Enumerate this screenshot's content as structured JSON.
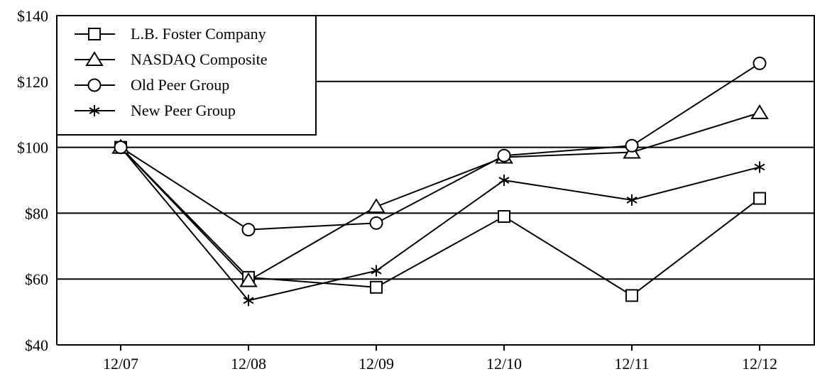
{
  "chart_data": {
    "type": "line",
    "categories": [
      "12/07",
      "12/08",
      "12/09",
      "12/10",
      "12/11",
      "12/12"
    ],
    "ylim": [
      40,
      140
    ],
    "yticks": [
      40,
      60,
      80,
      100,
      120,
      140
    ],
    "ytick_labels": [
      "$40",
      "$60",
      "$80",
      "$100",
      "$120",
      "$140"
    ],
    "grid": "horizontal",
    "legend_position": "top-left",
    "series": [
      {
        "name": "L.B. Foster Company",
        "marker": "square",
        "values": [
          100,
          60.5,
          57.5,
          79,
          55,
          84.5
        ]
      },
      {
        "name": "NASDAQ Composite",
        "marker": "triangle",
        "values": [
          100,
          59.5,
          82,
          97,
          98.5,
          110.5
        ]
      },
      {
        "name": "Old Peer Group",
        "marker": "circle",
        "values": [
          100,
          75,
          77,
          97.5,
          100.5,
          125.5
        ]
      },
      {
        "name": "New Peer Group",
        "marker": "asterisk",
        "values": [
          100,
          53.5,
          62.5,
          90,
          84,
          94
        ]
      }
    ]
  }
}
